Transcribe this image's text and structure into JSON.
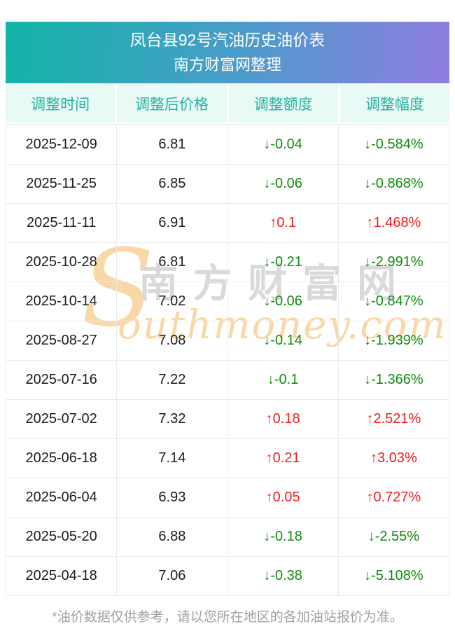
{
  "banner": {
    "title": "凤台县92号汽油历史油价表",
    "subtitle": "南方财富网整理"
  },
  "table": {
    "columns": [
      "调整时间",
      "调整后价格",
      "调整额度",
      "调整幅度"
    ],
    "rows": [
      {
        "date": "2025-12-09",
        "price": "6.81",
        "change": "↓-0.04",
        "pct": "↓-0.584%",
        "dir": "down"
      },
      {
        "date": "2025-11-25",
        "price": "6.85",
        "change": "↓-0.06",
        "pct": "↓-0.868%",
        "dir": "down"
      },
      {
        "date": "2025-11-11",
        "price": "6.91",
        "change": "↑0.1",
        "pct": "↑1.468%",
        "dir": "up"
      },
      {
        "date": "2025-10-28",
        "price": "6.81",
        "change": "↓-0.21",
        "pct": "↓-2.991%",
        "dir": "down"
      },
      {
        "date": "2025-10-14",
        "price": "7.02",
        "change": "↓-0.06",
        "pct": "↓-0.847%",
        "dir": "down"
      },
      {
        "date": "2025-08-27",
        "price": "7.08",
        "change": "↓-0.14",
        "pct": "↓-1.939%",
        "dir": "down"
      },
      {
        "date": "2025-07-16",
        "price": "7.22",
        "change": "↓-0.1",
        "pct": "↓-1.366%",
        "dir": "down"
      },
      {
        "date": "2025-07-02",
        "price": "7.32",
        "change": "↑0.18",
        "pct": "↑2.521%",
        "dir": "up"
      },
      {
        "date": "2025-06-18",
        "price": "7.14",
        "change": "↑0.21",
        "pct": "↑3.03%",
        "dir": "up"
      },
      {
        "date": "2025-06-04",
        "price": "6.93",
        "change": "↑0.05",
        "pct": "↑0.727%",
        "dir": "up"
      },
      {
        "date": "2025-05-20",
        "price": "6.88",
        "change": "↓-0.18",
        "pct": "↓-2.55%",
        "dir": "down"
      },
      {
        "date": "2025-04-18",
        "price": "7.06",
        "change": "↓-0.38",
        "pct": "↓-5.108%",
        "dir": "down"
      }
    ]
  },
  "watermark": {
    "s": "S",
    "cn": "南方财富网",
    "en": "outhmoney.com"
  },
  "footer": {
    "note": "*油价数据仅供参考，请以您所在地区的各加油站报价为准。"
  },
  "colors": {
    "up_red": "#f31e1e",
    "down_green": "#0d8c0d",
    "banner_teal": "#12b5a6",
    "banner_blue": "#4a9cca",
    "banner_purple": "#8f7ce0",
    "header_bg": "#e8faf5",
    "header_text": "#29b2a2",
    "grid": "#e8ebeb",
    "wm_peach": "#f9d8a8",
    "wm_gray": "#d9d9d9",
    "footer_gray": "#a0a0a0"
  }
}
